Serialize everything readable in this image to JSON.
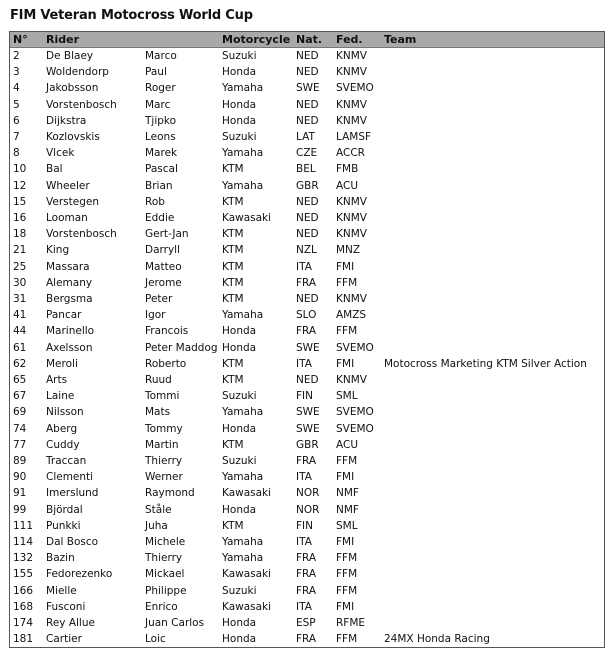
{
  "title": "FIM Veteran Motocross World Cup",
  "headers": [
    "N°",
    "Rider",
    "",
    "Motorcycle",
    "Nat.",
    "Fed.",
    "Team"
  ],
  "rows": [
    [
      "2",
      "De Blaey",
      "Marco",
      "Suzuki",
      "NED",
      "KNMV",
      ""
    ],
    [
      "3",
      "Woldendorp",
      "Paul",
      "Honda",
      "NED",
      "KNMV",
      ""
    ],
    [
      "4",
      "Jakobsson",
      "Roger",
      "Yamaha",
      "SWE",
      "SVEMO",
      ""
    ],
    [
      "5",
      "Vorstenbosch",
      "Marc",
      "Honda",
      "NED",
      "KNMV",
      ""
    ],
    [
      "6",
      "Dijkstra",
      "Tjipko",
      "Honda",
      "NED",
      "KNMV",
      ""
    ],
    [
      "7",
      "Kozlovskis",
      "Leons",
      "Suzuki",
      "LAT",
      "LAMSF",
      ""
    ],
    [
      "8",
      "Vlcek",
      "Marek",
      "Yamaha",
      "CZE",
      "ACCR",
      ""
    ],
    [
      "10",
      "Bal",
      "Pascal",
      "KTM",
      "BEL",
      "FMB",
      ""
    ],
    [
      "12",
      "Wheeler",
      "Brian",
      "Yamaha",
      "GBR",
      "ACU",
      ""
    ],
    [
      "15",
      "Verstegen",
      "Rob",
      "KTM",
      "NED",
      "KNMV",
      ""
    ],
    [
      "16",
      "Looman",
      "Eddie",
      "Kawasaki",
      "NED",
      "KNMV",
      ""
    ],
    [
      "18",
      "Vorstenbosch",
      "Gert-Jan",
      "KTM",
      "NED",
      "KNMV",
      ""
    ],
    [
      "21",
      "King",
      "Darryll",
      "KTM",
      "NZL",
      "MNZ",
      ""
    ],
    [
      "25",
      "Massara",
      "Matteo",
      "KTM",
      "ITA",
      "FMI",
      ""
    ],
    [
      "30",
      "Alemany",
      "Jerome",
      "KTM",
      "FRA",
      "FFM",
      ""
    ],
    [
      "31",
      "Bergsma",
      "Peter",
      "KTM",
      "NED",
      "KNMV",
      ""
    ],
    [
      "41",
      "Pancar",
      "Igor",
      "Yamaha",
      "SLO",
      "AMZS",
      ""
    ],
    [
      "44",
      "Marinello",
      "Francois",
      "Honda",
      "FRA",
      "FFM",
      ""
    ],
    [
      "61",
      "Axelsson",
      "Peter Maddog",
      "Honda",
      "SWE",
      "SVEMO",
      ""
    ],
    [
      "62",
      "Meroli",
      "Roberto",
      "KTM",
      "ITA",
      "FMI",
      "Motocross Marketing KTM Silver Action"
    ],
    [
      "65",
      "Arts",
      "Ruud",
      "KTM",
      "NED",
      "KNMV",
      ""
    ],
    [
      "67",
      "Laine",
      "Tommi",
      "Suzuki",
      "FIN",
      "SML",
      ""
    ],
    [
      "69",
      "Nilsson",
      "Mats",
      "Yamaha",
      "SWE",
      "SVEMO",
      ""
    ],
    [
      "74",
      "Aberg",
      "Tommy",
      "Honda",
      "SWE",
      "SVEMO",
      ""
    ],
    [
      "77",
      "Cuddy",
      "Martin",
      "KTM",
      "GBR",
      "ACU",
      ""
    ],
    [
      "89",
      "Traccan",
      "Thierry",
      "Suzuki",
      "FRA",
      "FFM",
      ""
    ],
    [
      "90",
      "Clementi",
      "Werner",
      "Yamaha",
      "ITA",
      "FMI",
      ""
    ],
    [
      "91",
      "Imerslund",
      "Raymond",
      "Kawasaki",
      "NOR",
      "NMF",
      ""
    ],
    [
      "99",
      "Björdal",
      "Ståle",
      "Honda",
      "NOR",
      "NMF",
      ""
    ],
    [
      "111",
      "Punkki",
      "Juha",
      "KTM",
      "FIN",
      "SML",
      ""
    ],
    [
      "114",
      "Dal Bosco",
      "Michele",
      "Yamaha",
      "ITA",
      "FMI",
      ""
    ],
    [
      "132",
      "Bazin",
      "Thierry",
      "Yamaha",
      "FRA",
      "FFM",
      ""
    ],
    [
      "155",
      "Fedorezenko",
      "Mickael",
      "Kawasaki",
      "FRA",
      "FFM",
      ""
    ],
    [
      "166",
      "Mielle",
      "Philippe",
      "Suzuki",
      "FRA",
      "FFM",
      ""
    ],
    [
      "168",
      "Fusconi",
      "Enrico",
      "Kawasaki",
      "ITA",
      "FMI",
      ""
    ],
    [
      "174",
      "Rey Allue",
      "Juan Carlos",
      "Honda",
      "ESP",
      "RFME",
      ""
    ],
    [
      "181",
      "Cartier",
      "Loic",
      "Honda",
      "FRA",
      "FFM",
      "24MX Honda Racing"
    ]
  ]
}
